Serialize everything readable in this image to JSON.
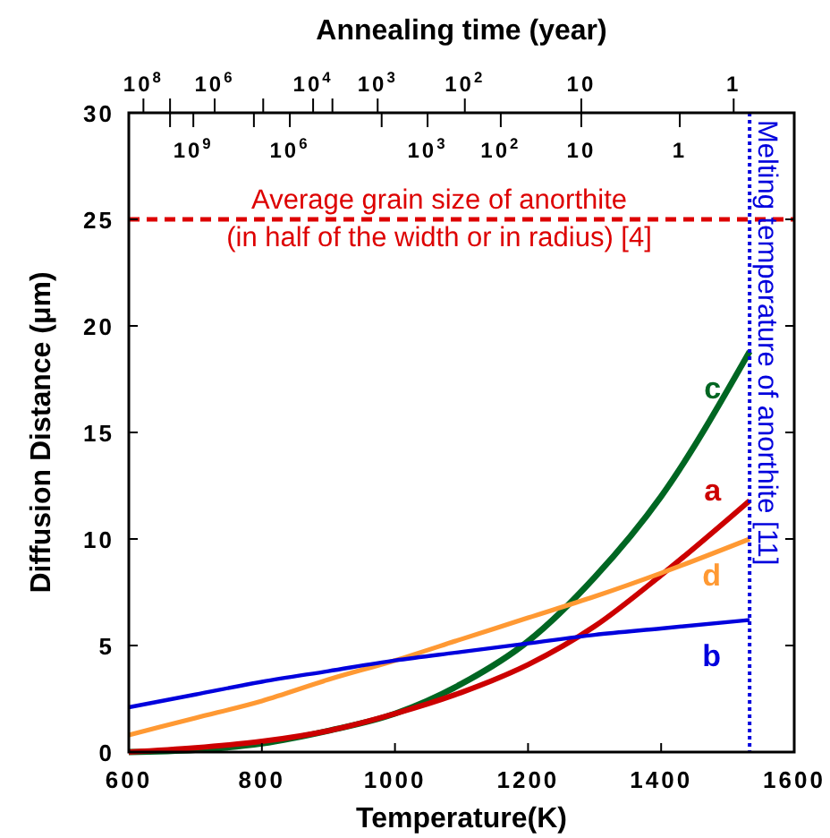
{
  "chart_data": {
    "type": "line",
    "xlabel": "Temperature(K)",
    "ylabel": "Diffusion Distance (μm)",
    "x2label": "Annealing time (year)",
    "x": [
      600,
      700,
      800,
      900,
      1000,
      1100,
      1200,
      1300,
      1400,
      1533
    ],
    "xlim": [
      600,
      1600
    ],
    "xticks": [
      600,
      800,
      1000,
      1200,
      1400,
      1600
    ],
    "ylim": [
      0,
      30
    ],
    "yticks": [
      0,
      5,
      10,
      15,
      20,
      25,
      30
    ],
    "annotations": [
      "10$^{8}$",
      "10$^{6}$",
      "10$^{4}$",
      "10$^{3}$",
      "10$^{2}$",
      "10",
      "1",
      "10$^{9}$",
      "10$^{6}$",
      "10$^{3}$",
      "10$^{2}$",
      "10",
      "1"
    ],
    "series": [
      {
        "name": "c",
        "color": "#006622",
        "values": [
          0,
          0.1,
          0.4,
          1.0,
          1.8,
          3.2,
          5.2,
          8.2,
          12.0,
          18.8
        ]
      },
      {
        "name": "a",
        "color": "#cc0000",
        "values": [
          0,
          0.2,
          0.5,
          1.0,
          1.8,
          2.8,
          4.1,
          5.9,
          8.3,
          11.8
        ]
      },
      {
        "name": "d",
        "color": "#ff9933",
        "values": [
          0.8,
          1.6,
          2.4,
          3.4,
          4.3,
          5.3,
          6.3,
          7.3,
          8.4,
          10.0
        ]
      },
      {
        "name": "b",
        "color": "#0000dd",
        "values": [
          2.1,
          2.7,
          3.3,
          3.8,
          4.3,
          4.7,
          5.1,
          5.5,
          5.8,
          6.2
        ]
      }
    ],
    "ref_lines": [
      {
        "axis": "y",
        "value": 25,
        "label": "Average grain size of anorthite\n(in half of the width or in radius) [4]",
        "color": "#dd0000",
        "line_style": "dashed"
      },
      {
        "axis": "x",
        "value": 1533,
        "label": "Melting temperature of anorthite [11]",
        "color": "#0000dd",
        "line_style": "dotted"
      }
    ],
    "grid": false,
    "marker": "none",
    "line_style": "solid"
  }
}
